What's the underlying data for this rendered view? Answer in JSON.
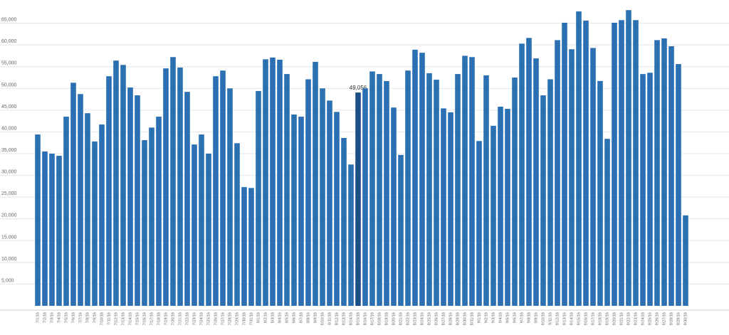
{
  "chart_data": {
    "type": "bar",
    "categories": [
      "7/1/16",
      "7/2/16",
      "7/3/16",
      "7/4/16",
      "7/5/16",
      "7/6/16",
      "7/7/16",
      "7/8/16",
      "7/9/16",
      "7/10/16",
      "7/11/16",
      "7/12/16",
      "7/13/16",
      "7/14/16",
      "7/15/16",
      "7/16/16",
      "7/17/16",
      "7/18/16",
      "7/19/16",
      "7/20/16",
      "7/21/16",
      "7/22/16",
      "7/23/16",
      "7/24/16",
      "7/25/16",
      "7/26/16",
      "7/27/16",
      "7/28/16",
      "7/29/16",
      "7/30/16",
      "7/31/16",
      "8/1/16",
      "8/2/16",
      "8/3/16",
      "8/4/16",
      "8/5/16",
      "8/6/16",
      "8/7/16",
      "8/8/16",
      "8/9/16",
      "8/10/16",
      "8/11/16",
      "8/12/16",
      "8/13/16",
      "8/14/16",
      "8/15/16",
      "8/16/16",
      "8/17/16",
      "8/18/16",
      "8/19/16",
      "8/20/16",
      "8/21/16",
      "8/22/16",
      "8/23/16",
      "8/24/16",
      "8/25/16",
      "8/26/16",
      "8/27/16",
      "8/28/16",
      "8/29/16",
      "8/30/16",
      "8/31/16",
      "9/1/16",
      "9/2/16",
      "9/3/16",
      "9/4/16",
      "9/5/16",
      "9/6/16",
      "9/7/16",
      "9/8/16",
      "9/9/16",
      "9/10/16",
      "9/11/16",
      "9/12/16",
      "9/13/16",
      "9/14/16",
      "9/15/16",
      "9/16/16",
      "9/17/16",
      "9/18/16",
      "9/19/16",
      "9/20/16",
      "9/21/16",
      "9/22/16",
      "9/23/16",
      "9/24/16",
      "9/25/16",
      "9/26/16",
      "9/27/16",
      "9/28/16",
      "9/29/16",
      "9/30/16"
    ],
    "values": [
      39400,
      35500,
      35000,
      34500,
      43500,
      51300,
      48700,
      44300,
      37800,
      41700,
      52800,
      56400,
      55400,
      50200,
      48400,
      38100,
      41000,
      43500,
      54600,
      57200,
      54800,
      49200,
      37100,
      39400,
      35000,
      52800,
      54100,
      50000,
      37400,
      27300,
      27100,
      49400,
      56700,
      57100,
      56600,
      53300,
      44000,
      43500,
      52100,
      56100,
      50000,
      47200,
      44600,
      38600,
      32500,
      49056,
      50000,
      53900,
      53300,
      51700,
      45600,
      34700,
      54100,
      58900,
      58200,
      53500,
      52000,
      45400,
      44500,
      53300,
      57500,
      57200,
      37900,
      53000,
      41400,
      45800,
      45300,
      52500,
      60300,
      61600,
      56900,
      48400,
      52100,
      61100,
      65100,
      59000,
      67700,
      65600,
      59300,
      51700,
      38400,
      65100,
      65700,
      68000,
      65700,
      53300,
      53600,
      61100,
      61500,
      59700,
      55600,
      20800
    ],
    "value_labels": [
      null,
      null,
      null,
      null,
      null,
      null,
      null,
      null,
      null,
      null,
      null,
      null,
      null,
      null,
      null,
      null,
      null,
      null,
      null,
      null,
      null,
      null,
      null,
      null,
      null,
      null,
      null,
      null,
      null,
      null,
      null,
      null,
      null,
      null,
      null,
      null,
      null,
      null,
      null,
      null,
      null,
      null,
      null,
      null,
      null,
      "49,056",
      null,
      null,
      null,
      null,
      null,
      null,
      null,
      null,
      null,
      null,
      null,
      null,
      null,
      null,
      null,
      null,
      null,
      null,
      null,
      null,
      null,
      null,
      null,
      null,
      null,
      null,
      null,
      null,
      null,
      null,
      null,
      null,
      null,
      null,
      null,
      null,
      null,
      null,
      null,
      null,
      null,
      null,
      null,
      null,
      null,
      null
    ],
    "color": "#2a70b3",
    "highlight": {
      "index": 45,
      "color": "#1b4f85"
    },
    "ylim": [
      0,
      70000
    ],
    "yticks": [
      {
        "value": 5000,
        "label": "5,000"
      },
      {
        "value": 10000,
        "label": "10,000"
      },
      {
        "value": 15000,
        "label": "15,000"
      },
      {
        "value": 20000,
        "label": "20,000"
      },
      {
        "value": 25000,
        "label": "25,000"
      },
      {
        "value": 30000,
        "label": "30,000"
      },
      {
        "value": 35000,
        "label": "35,000"
      },
      {
        "value": 40000,
        "label": "40,000"
      },
      {
        "value": 45000,
        "label": "45,000"
      },
      {
        "value": 50000,
        "label": "50,000"
      },
      {
        "value": 55000,
        "label": "55,000"
      },
      {
        "value": 60000,
        "label": "60,000"
      },
      {
        "value": 65000,
        "label": "65,000"
      }
    ],
    "grid": true
  }
}
